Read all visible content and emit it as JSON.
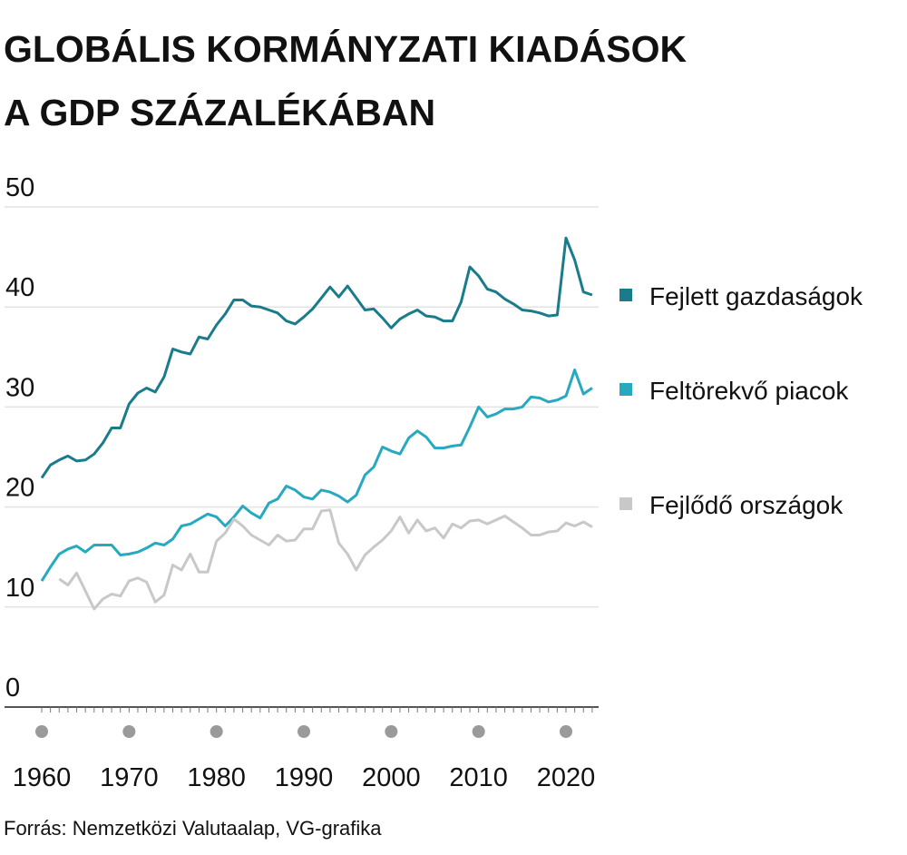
{
  "chart_data": {
    "type": "line",
    "title": [
      "GLOBÁLIS KORMÁNYZATI KIADÁSOK",
      "A GDP SZÁZALÉKÁBAN"
    ],
    "source": "Forrás: Nemzetközi Valutaalap, VG-grafika",
    "x": [
      1960,
      1961,
      1962,
      1963,
      1964,
      1965,
      1966,
      1967,
      1968,
      1969,
      1970,
      1971,
      1972,
      1973,
      1974,
      1975,
      1976,
      1977,
      1978,
      1979,
      1980,
      1981,
      1982,
      1983,
      1984,
      1985,
      1986,
      1987,
      1988,
      1989,
      1990,
      1991,
      1992,
      1993,
      1994,
      1995,
      1996,
      1997,
      1998,
      1999,
      2000,
      2001,
      2002,
      2003,
      2004,
      2005,
      2006,
      2007,
      2008,
      2009,
      2010,
      2011,
      2012,
      2013,
      2014,
      2015,
      2016,
      2017,
      2018,
      2019,
      2020,
      2021,
      2022,
      2023
    ],
    "series": [
      {
        "name": "Fejlett gazdaságok",
        "color": "#1a7b8b",
        "values": [
          22.9,
          24.2,
          24.7,
          25.1,
          24.6,
          24.7,
          25.3,
          26.4,
          27.9,
          27.9,
          30.3,
          31.4,
          31.9,
          31.5,
          33.0,
          35.8,
          35.5,
          35.3,
          37.0,
          36.8,
          38.2,
          39.3,
          40.7,
          40.7,
          40.1,
          40.0,
          39.7,
          39.4,
          38.6,
          38.3,
          39.0,
          39.8,
          40.9,
          42.0,
          41.0,
          42.1,
          40.9,
          39.7,
          39.8,
          38.9,
          37.9,
          38.8,
          39.3,
          39.7,
          39.1,
          39.0,
          38.6,
          38.6,
          40.5,
          44.0,
          43.1,
          41.8,
          41.5,
          40.8,
          40.3,
          39.7,
          39.6,
          39.4,
          39.1,
          39.2,
          46.9,
          44.7,
          41.5,
          41.2
        ]
      },
      {
        "name": "Feltörekvő piacok",
        "color": "#27a9c0",
        "values": [
          12.6,
          14.0,
          15.3,
          15.8,
          16.1,
          15.5,
          16.2,
          16.2,
          16.2,
          15.2,
          15.3,
          15.5,
          15.9,
          16.4,
          16.2,
          16.8,
          18.1,
          18.3,
          18.8,
          19.3,
          19.0,
          18.1,
          19.0,
          20.1,
          19.4,
          18.9,
          20.4,
          20.8,
          22.1,
          21.7,
          21.0,
          20.8,
          21.7,
          21.5,
          21.1,
          20.5,
          21.2,
          23.2,
          24.0,
          26.0,
          25.6,
          25.3,
          26.9,
          27.6,
          27.0,
          25.9,
          25.9,
          26.1,
          26.2,
          28.0,
          30.0,
          29.0,
          29.3,
          29.8,
          29.8,
          30.0,
          31.0,
          30.9,
          30.5,
          30.7,
          31.1,
          33.7,
          31.3,
          31.9
        ]
      },
      {
        "name": "Fejlődő országok",
        "color": "#c8c8c8",
        "values": [
          null,
          null,
          12.8,
          12.2,
          13.4,
          11.6,
          9.8,
          10.8,
          11.3,
          11.1,
          12.6,
          12.9,
          12.5,
          10.5,
          11.2,
          14.2,
          13.7,
          15.3,
          13.5,
          13.5,
          16.6,
          17.4,
          18.8,
          18.1,
          17.2,
          16.7,
          16.2,
          17.2,
          16.6,
          16.7,
          17.8,
          17.8,
          19.6,
          19.7,
          16.4,
          15.3,
          13.7,
          15.2,
          16.0,
          16.7,
          17.6,
          19.0,
          17.4,
          18.7,
          17.6,
          17.9,
          16.9,
          18.3,
          17.9,
          18.6,
          18.7,
          18.3,
          18.7,
          19.1,
          18.5,
          17.9,
          17.2,
          17.2,
          17.5,
          17.6,
          18.4,
          18.1,
          18.5,
          18.0
        ]
      }
    ],
    "xlim": [
      1956,
      2024
    ],
    "xticks": [
      1960,
      1970,
      1980,
      1990,
      2000,
      2010,
      2020
    ],
    "ylim": [
      0,
      50
    ],
    "yticks": [
      0,
      10,
      20,
      30,
      40,
      50
    ],
    "grid": true
  }
}
